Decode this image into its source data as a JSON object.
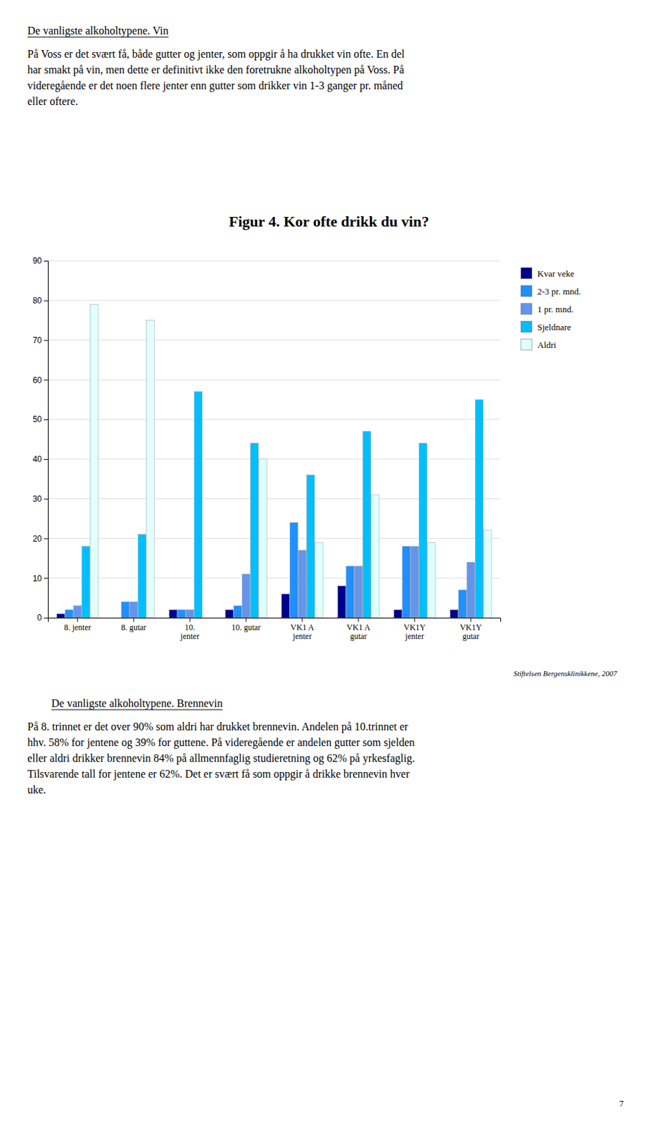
{
  "chart_data": {
    "type": "bar",
    "title": "Figur 4. Kor ofte drikk du vin?",
    "categories": [
      "8. jenter",
      "8. gutar",
      "10.\njenter",
      "10. gutar",
      "VK1 A\njenter",
      "VK1 A\ngutar",
      "VK1Y\njenter",
      "VK1Y\ngutar"
    ],
    "series": [
      {
        "name": "Kvar veke",
        "color": "#00008B",
        "values": [
          1,
          0,
          2,
          2,
          6,
          8,
          2,
          2
        ]
      },
      {
        "name": "2-3 pr. mnd.",
        "color": "#1E90FF",
        "values": [
          2,
          4,
          2,
          3,
          24,
          13,
          18,
          7
        ]
      },
      {
        "name": "1 pr. mnd.",
        "color": "#6495ED",
        "values": [
          3,
          4,
          2,
          11,
          17,
          13,
          18,
          14
        ]
      },
      {
        "name": "Sjeldnare",
        "color": "#00BFFF",
        "values": [
          18,
          21,
          57,
          44,
          36,
          47,
          44,
          55
        ]
      },
      {
        "name": "Aldri",
        "color": "#E0FFFF",
        "values": [
          79,
          75,
          0,
          40,
          19,
          31,
          19,
          22
        ]
      }
    ],
    "ylim": [
      0,
      90
    ],
    "yticks": [
      0,
      10,
      20,
      30,
      40,
      50,
      60,
      70,
      80,
      90
    ],
    "grid": true,
    "legend": "right",
    "footnote": "Stiftelsen Bergensklinikkene, 2007"
  },
  "sections": [
    {
      "title": "De vanligste alkoholtypene. Vin",
      "body": [
        "På Voss er det svært få, både gutter og jenter, som oppgir å ha drukket vin ofte. En del",
        "har smakt på vin, men dette er definitivt ikke den foretrukne alkoholtypen på Voss. På",
        "videregående er det noen flere jenter enn gutter som drikker vin 1-3 ganger pr. måned",
        "eller oftere."
      ]
    },
    {
      "title": "De vanligste alkoholtypene. Brennevin",
      "body": [
        "På 8. trinnet er det over 90% som aldri har drukket brennevin. Andelen på 10.trinnet er",
        "hhv. 58% for jentene og 39% for guttene. På videregående er andelen gutter som sjelden",
        "eller aldri drikker brennevin 84% på allmennfaglig studieretning og 62% på yrkesfaglig.",
        "Tilsvarende tall for jentene er 62%. Det er svært få som oppgir å drikke brennevin hver",
        "uke."
      ]
    }
  ],
  "page_number": "7"
}
